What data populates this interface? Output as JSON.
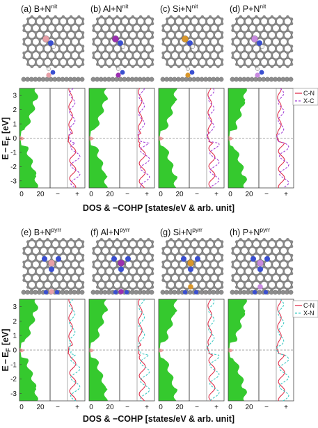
{
  "panels_top": [
    {
      "id": "a",
      "label": "(a) B+N",
      "sup": "nit",
      "dopant_color": "#e8a0a8"
    },
    {
      "id": "b",
      "label": "(b) Al+N",
      "sup": "nit",
      "dopant_color": "#9b2fb0"
    },
    {
      "id": "c",
      "label": "(c) Si+N",
      "sup": "nit",
      "dopant_color": "#d9962a"
    },
    {
      "id": "d",
      "label": "(d) P+N",
      "sup": "nit",
      "dopant_color": "#c88ae0"
    }
  ],
  "panels_bottom": [
    {
      "id": "e",
      "label": "(e) B+N",
      "sup": "pyrr",
      "dopant_color": "#e8a0a8"
    },
    {
      "id": "f",
      "label": "(f) Al+N",
      "sup": "pyrr",
      "dopant_color": "#9b2fb0"
    },
    {
      "id": "g",
      "label": "(g) Si+N",
      "sup": "pyrr",
      "dopant_color": "#d9962a"
    },
    {
      "id": "h",
      "label": "(h) P+N",
      "sup": "pyrr",
      "dopant_color": "#c88ae0"
    }
  ],
  "colors": {
    "carbon": "#8a8a8a",
    "nitrogen": "#3a4fd0",
    "hydrogen": "#f2f2f2",
    "dos_fill": "#35c92e",
    "cn": "#e0314d",
    "xc": "#a23fd6",
    "xn": "#3fc9c4"
  },
  "top_legend": {
    "cn": "C-N",
    "xc": "X-C"
  },
  "bottom_legend": {
    "cn": "C-N",
    "xn": "X-N"
  },
  "chart_data": [
    {
      "type": "line",
      "group": "top",
      "ylabel": "E − E_F [eV]",
      "xlabel": "DOS & −COHP [states/eV & arb. unit]",
      "ylim": [
        -3.5,
        3.5
      ],
      "yticks": [
        -3,
        -2,
        -1,
        0,
        1,
        2,
        3
      ],
      "dos_xticks": [
        "0",
        "20"
      ],
      "cohp_xticks": [
        "−",
        "+"
      ],
      "series": [
        "C-N",
        "X-C"
      ]
    },
    {
      "type": "line",
      "group": "bottom",
      "ylabel": "E − E_F [eV]",
      "xlabel": "DOS & −COHP [states/eV & arb. unit]",
      "ylim": [
        -3.5,
        3.5
      ],
      "yticks": [
        -3,
        -2,
        -1,
        0,
        1,
        2,
        3
      ],
      "dos_xticks": [
        "0",
        "20"
      ],
      "cohp_xticks": [
        "−",
        "+"
      ],
      "series": [
        "C-N",
        "X-N"
      ]
    }
  ],
  "axis_labels": {
    "y_main": "E",
    "y_minus": "−",
    "y_sub": "E",
    "y_subscript": "F",
    "y_unit": "[eV]",
    "x_text": "DOS  &  −COHP  [states/eV & arb. unit]"
  }
}
